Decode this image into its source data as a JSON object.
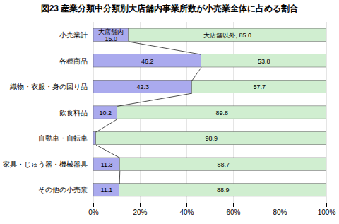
{
  "chart_data": {
    "type": "bar",
    "orientation": "horizontal",
    "stacked": true,
    "title": "図23  産業分類中分類別大店舗内事業所数が小売業全体に占める割合",
    "categories": [
      "小売業計",
      "各種商品",
      "織物・衣服・身の回り品",
      "飲食料品",
      "自動車・自転車",
      "家具・じゅう器・機械器具",
      "その他の小売業"
    ],
    "series": [
      {
        "name": "大店舗内",
        "color": "#aaaaee",
        "values": [
          15.0,
          46.2,
          42.3,
          10.2,
          1.1,
          11.3,
          11.1
        ],
        "value_labels": [
          "大店舗内\n15.0",
          "46.2",
          "42.3",
          "10.2",
          null,
          "11.3",
          "11.1"
        ]
      },
      {
        "name": "大店舗以外",
        "color": "#d0eed0",
        "values": [
          85.0,
          53.8,
          57.7,
          89.8,
          98.9,
          88.7,
          88.9
        ],
        "value_labels": [
          "大店舗以外, 85.0",
          "53.8",
          "57.7",
          "89.8",
          "98.9",
          "88.7",
          "88.9"
        ]
      }
    ],
    "data_labels": true,
    "xlim": [
      0,
      100
    ],
    "xticks": [
      {
        "value": 0,
        "label": "0%"
      },
      {
        "value": 20,
        "label": "20%"
      },
      {
        "value": 40,
        "label": "40%"
      },
      {
        "value": 60,
        "label": "60%"
      },
      {
        "value": 80,
        "label": "80%"
      },
      {
        "value": 100,
        "label": "100%"
      }
    ],
    "grid": true
  }
}
